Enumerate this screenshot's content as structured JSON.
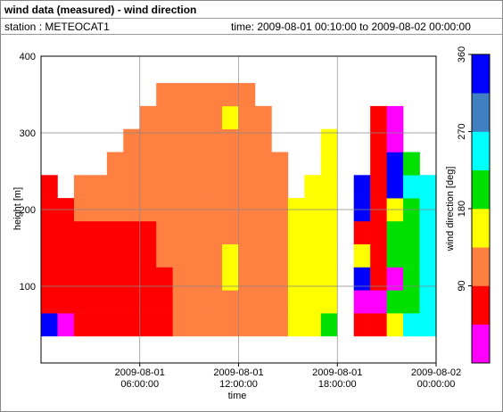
{
  "header": {
    "title": "wind data (measured) - wind direction",
    "station": "station : METEOCAT1",
    "time": "time: 2009-08-01 00:10:00 to 2009-08-02 00:00:00"
  },
  "chart_data": {
    "type": "heatmap",
    "xlabel": "time",
    "ylabel": "height [m]",
    "clabel": "wind direction [deg]",
    "xlim": [
      0,
      24
    ],
    "ylim": [
      0,
      400
    ],
    "xticks": [
      {
        "value": 6,
        "label": "2009-08-01 06:00:00"
      },
      {
        "value": 12,
        "label": "2009-08-01 12:00:00"
      },
      {
        "value": 18,
        "label": "2009-08-01 18:00:00"
      },
      {
        "value": 24,
        "label": "2009-08-02 00:00:00"
      }
    ],
    "yticks": [
      100,
      200,
      300,
      400
    ],
    "grid": true,
    "x_edges": [
      0,
      1,
      2,
      3,
      4,
      5,
      6,
      7,
      8,
      9,
      10,
      11,
      12,
      13,
      14,
      15,
      16,
      17,
      18,
      19,
      20,
      21,
      22,
      23,
      24
    ],
    "y_edges": [
      35,
      65,
      95,
      125,
      155,
      185,
      215,
      245,
      275,
      305,
      335,
      365
    ],
    "z": [
      [
        337,
        67,
        67,
        67,
        67,
        67,
        67,
        null,
        null,
        null,
        null
      ],
      [
        22,
        67,
        67,
        67,
        67,
        67,
        null,
        null,
        null,
        null,
        null
      ],
      [
        67,
        67,
        67,
        67,
        67,
        112,
        112,
        null,
        null,
        null,
        null
      ],
      [
        67,
        67,
        67,
        67,
        67,
        112,
        112,
        null,
        null,
        null,
        null
      ],
      [
        67,
        67,
        67,
        67,
        67,
        112,
        112,
        112,
        null,
        null,
        null
      ],
      [
        67,
        67,
        67,
        67,
        67,
        112,
        112,
        112,
        112,
        null,
        null
      ],
      [
        67,
        67,
        67,
        67,
        67,
        112,
        112,
        112,
        112,
        112,
        null
      ],
      [
        67,
        67,
        67,
        112,
        112,
        112,
        112,
        112,
        112,
        112,
        112
      ],
      [
        112,
        112,
        112,
        112,
        112,
        112,
        112,
        112,
        112,
        112,
        112
      ],
      [
        112,
        112,
        112,
        112,
        112,
        112,
        112,
        112,
        112,
        112,
        112
      ],
      [
        112,
        112,
        112,
        112,
        112,
        112,
        112,
        112,
        112,
        112,
        112
      ],
      [
        112,
        112,
        157,
        157,
        112,
        112,
        112,
        112,
        112,
        157,
        112
      ],
      [
        112,
        112,
        112,
        112,
        112,
        112,
        112,
        112,
        112,
        112,
        112
      ],
      [
        112,
        112,
        112,
        112,
        112,
        112,
        112,
        112,
        112,
        112,
        null
      ],
      [
        112,
        112,
        112,
        112,
        112,
        112,
        112,
        112,
        null,
        null,
        null
      ],
      [
        157,
        157,
        157,
        157,
        157,
        157,
        null,
        null,
        null,
        null,
        null
      ],
      [
        157,
        157,
        157,
        157,
        157,
        157,
        157,
        null,
        null,
        null,
        null
      ],
      [
        202,
        157,
        157,
        157,
        157,
        157,
        157,
        157,
        157,
        null,
        null
      ],
      [
        null,
        null,
        null,
        null,
        null,
        null,
        null,
        null,
        null,
        null,
        null
      ],
      [
        67,
        22,
        337,
        157,
        67,
        337,
        337,
        null,
        null,
        null,
        null
      ],
      [
        67,
        22,
        67,
        67,
        67,
        67,
        67,
        67,
        67,
        67,
        null
      ],
      [
        157,
        202,
        22,
        202,
        202,
        157,
        337,
        337,
        22,
        22,
        null
      ],
      [
        247,
        202,
        202,
        202,
        202,
        202,
        247,
        202,
        null,
        null,
        null
      ],
      [
        247,
        247,
        247,
        247,
        247,
        247,
        247,
        null,
        null,
        null,
        null
      ]
    ],
    "clim": [
      0,
      360
    ],
    "cticks": [
      90,
      180,
      270,
      360
    ],
    "colors": [
      "#ff00ff",
      "#ff0000",
      "#ff8040",
      "#ffff00",
      "#00e000",
      "#00ffff",
      "#4080c0",
      "#0000ff"
    ]
  }
}
